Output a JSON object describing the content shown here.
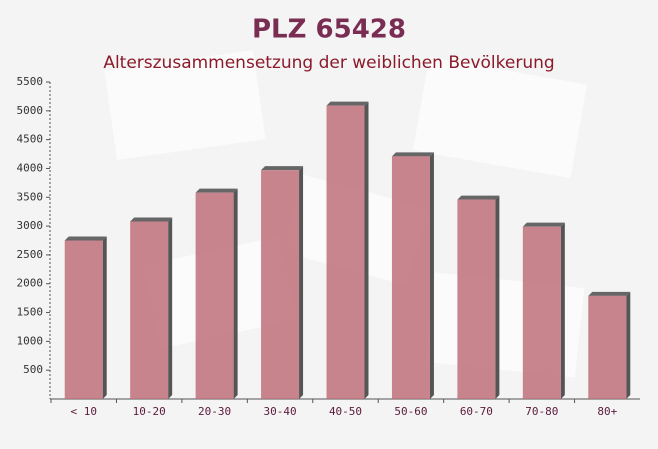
{
  "chart_data": {
    "type": "bar",
    "title": "PLZ 65428",
    "subtitle": "Alterszusammensetzung der weiblichen Bevölkerung",
    "categories": [
      "< 10",
      "10-20",
      "20-30",
      "30-40",
      "40-50",
      "50-60",
      "60-70",
      "70-80",
      "80+"
    ],
    "values": [
      2750,
      3080,
      3580,
      3970,
      5090,
      4210,
      3460,
      2990,
      1790
    ],
    "color": "#c0707a",
    "ylim": [
      0,
      5500
    ],
    "yticks": [
      500,
      1000,
      1500,
      2000,
      2500,
      3000,
      3500,
      4000,
      4500,
      5000,
      5500
    ]
  }
}
